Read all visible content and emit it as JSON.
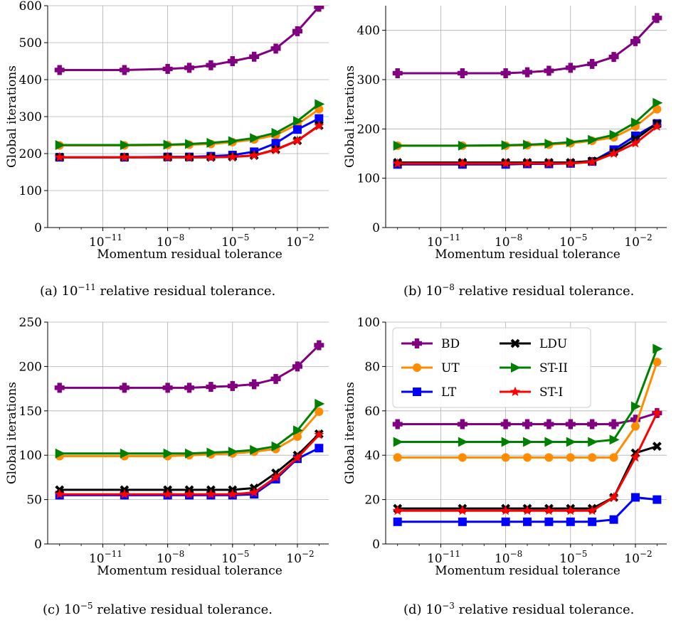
{
  "captions": [
    {
      "label": "(a)",
      "base": "10",
      "exp": "−11",
      "text": "relative residual tolerance."
    },
    {
      "label": "(b)",
      "base": "10",
      "exp": "−8",
      "text": "relative residual tolerance."
    },
    {
      "label": "(c)",
      "base": "10",
      "exp": "−5",
      "text": "relative residual tolerance."
    },
    {
      "label": "(d)",
      "base": "10",
      "exp": "−3",
      "text": "relative residual tolerance."
    }
  ],
  "colors": {
    "BD": "#800080",
    "UT": "#ff8c00",
    "LT": "#0000ff",
    "LDU": "#000000",
    "ST-II": "#008000",
    "ST-I": "#ff0000"
  },
  "markers": {
    "BD": "plus",
    "UT": "circle",
    "LT": "square",
    "LDU": "x",
    "ST-II": "triangle",
    "ST-I": "star"
  },
  "chart_data": [
    {
      "type": "line",
      "xlabel": "Momentum residual tolerance",
      "ylabel": "Global iterations",
      "xscale": "log",
      "x": [
        1e-13,
        1e-10,
        1e-08,
        1e-07,
        1e-06,
        1e-05,
        0.0001,
        0.001,
        0.01,
        0.1
      ],
      "xticks": [
        {
          "base": "10",
          "exp": "−11",
          "value": 1e-11
        },
        {
          "base": "10",
          "exp": "−8",
          "value": 1e-08
        },
        {
          "base": "10",
          "exp": "−5",
          "value": 1e-05
        },
        {
          "base": "10",
          "exp": "−2",
          "value": 0.01
        }
      ],
      "ylim": [
        0,
        600
      ],
      "yticks": [
        0,
        100,
        200,
        300,
        400,
        500,
        600
      ],
      "grid": true,
      "series": [
        {
          "name": "BD",
          "values": [
            426,
            426,
            429,
            432,
            439,
            450,
            462,
            484,
            531,
            597
          ]
        },
        {
          "name": "UT",
          "values": [
            222,
            222,
            223,
            224,
            226,
            231,
            238,
            250,
            279,
            320
          ]
        },
        {
          "name": "LT",
          "values": [
            190,
            190,
            191,
            191,
            193,
            196,
            205,
            228,
            265,
            295
          ]
        },
        {
          "name": "LDU",
          "values": [
            190,
            190,
            190,
            190,
            190,
            191,
            195,
            211,
            235,
            276
          ]
        },
        {
          "name": "ST-II",
          "values": [
            223,
            223,
            224,
            226,
            229,
            234,
            242,
            256,
            288,
            334
          ]
        },
        {
          "name": "ST-I",
          "values": [
            190,
            190,
            190,
            190,
            190,
            191,
            195,
            210,
            235,
            275
          ]
        }
      ]
    },
    {
      "type": "line",
      "xlabel": "Momentum residual tolerance",
      "ylabel": "Global iterations",
      "xscale": "log",
      "x": [
        1e-13,
        1e-10,
        1e-08,
        1e-07,
        1e-06,
        1e-05,
        0.0001,
        0.001,
        0.01,
        0.1
      ],
      "xticks": [
        {
          "base": "10",
          "exp": "−11",
          "value": 1e-11
        },
        {
          "base": "10",
          "exp": "−8",
          "value": 1e-08
        },
        {
          "base": "10",
          "exp": "−5",
          "value": 1e-05
        },
        {
          "base": "10",
          "exp": "−2",
          "value": 0.01
        }
      ],
      "ylim": [
        0,
        450
      ],
      "yticks": [
        0,
        100,
        200,
        300,
        400
      ],
      "grid": true,
      "series": [
        {
          "name": "BD",
          "values": [
            313,
            313,
            313,
            315,
            318,
            324,
            332,
            346,
            378,
            425
          ]
        },
        {
          "name": "UT",
          "values": [
            166,
            166,
            166,
            167,
            168,
            171,
            176,
            183,
            205,
            240
          ]
        },
        {
          "name": "LT",
          "values": [
            128,
            128,
            128,
            129,
            129,
            130,
            134,
            158,
            186,
            211
          ]
        },
        {
          "name": "LDU",
          "values": [
            132,
            132,
            132,
            132,
            132,
            132,
            135,
            153,
            179,
            211
          ]
        },
        {
          "name": "ST-II",
          "values": [
            166,
            166,
            167,
            168,
            170,
            173,
            178,
            188,
            213,
            253
          ]
        },
        {
          "name": "ST-I",
          "values": [
            130,
            130,
            130,
            130,
            130,
            130,
            133,
            150,
            171,
            205
          ]
        }
      ]
    },
    {
      "type": "line",
      "xlabel": "Momentum residual tolerance",
      "ylabel": "Global iterations",
      "xscale": "log",
      "x": [
        1e-13,
        1e-10,
        1e-08,
        1e-07,
        1e-06,
        1e-05,
        0.0001,
        0.001,
        0.01,
        0.1
      ],
      "xticks": [
        {
          "base": "10",
          "exp": "−11",
          "value": 1e-11
        },
        {
          "base": "10",
          "exp": "−8",
          "value": 1e-08
        },
        {
          "base": "10",
          "exp": "−5",
          "value": 1e-05
        },
        {
          "base": "10",
          "exp": "−2",
          "value": 0.01
        }
      ],
      "ylim": [
        0,
        250
      ],
      "yticks": [
        0,
        50,
        100,
        150,
        200,
        250
      ],
      "grid": true,
      "series": [
        {
          "name": "BD",
          "values": [
            176,
            176,
            176,
            176,
            177,
            178,
            180,
            186,
            200,
            224
          ]
        },
        {
          "name": "UT",
          "values": [
            99,
            99,
            99,
            100,
            101,
            102,
            104,
            107,
            121,
            149
          ]
        },
        {
          "name": "LT",
          "values": [
            55,
            55,
            55,
            55,
            55,
            55,
            56,
            73,
            96,
            108
          ]
        },
        {
          "name": "LDU",
          "values": [
            61,
            61,
            61,
            61,
            61,
            61,
            63,
            80,
            100,
            124
          ]
        },
        {
          "name": "ST-II",
          "values": [
            102,
            102,
            102,
            102,
            103,
            104,
            106,
            110,
            128,
            158
          ]
        },
        {
          "name": "ST-I",
          "values": [
            56,
            56,
            56,
            56,
            56,
            56,
            58,
            75,
            97,
            123
          ]
        }
      ]
    },
    {
      "type": "line",
      "xlabel": "Momentum residual tolerance",
      "ylabel": "Global iterations",
      "xscale": "log",
      "x": [
        1e-13,
        1e-10,
        1e-08,
        1e-07,
        1e-06,
        1e-05,
        0.0001,
        0.001,
        0.01,
        0.1
      ],
      "xticks": [
        {
          "base": "10",
          "exp": "−11",
          "value": 1e-11
        },
        {
          "base": "10",
          "exp": "−8",
          "value": 1e-08
        },
        {
          "base": "10",
          "exp": "−5",
          "value": 1e-05
        },
        {
          "base": "10",
          "exp": "−2",
          "value": 0.01
        }
      ],
      "ylim": [
        0,
        100
      ],
      "yticks": [
        0,
        20,
        40,
        60,
        80,
        100
      ],
      "grid": true,
      "legend": {
        "placement": "top-left",
        "columns": 2
      },
      "series": [
        {
          "name": "BD",
          "values": [
            54,
            54,
            54,
            54,
            54,
            54,
            54,
            54,
            56,
            59
          ]
        },
        {
          "name": "UT",
          "values": [
            39,
            39,
            39,
            39,
            39,
            39,
            39,
            39,
            53,
            82
          ]
        },
        {
          "name": "LT",
          "values": [
            10,
            10,
            10,
            10,
            10,
            10,
            10,
            11,
            21,
            20
          ]
        },
        {
          "name": "LDU",
          "values": [
            16,
            16,
            16,
            16,
            16,
            16,
            16,
            21,
            41,
            44
          ]
        },
        {
          "name": "ST-II",
          "values": [
            46,
            46,
            46,
            46,
            46,
            46,
            46,
            47,
            62,
            88
          ]
        },
        {
          "name": "ST-I",
          "values": [
            15,
            15,
            15,
            15,
            15,
            15,
            15,
            21,
            39,
            59
          ]
        }
      ]
    }
  ]
}
